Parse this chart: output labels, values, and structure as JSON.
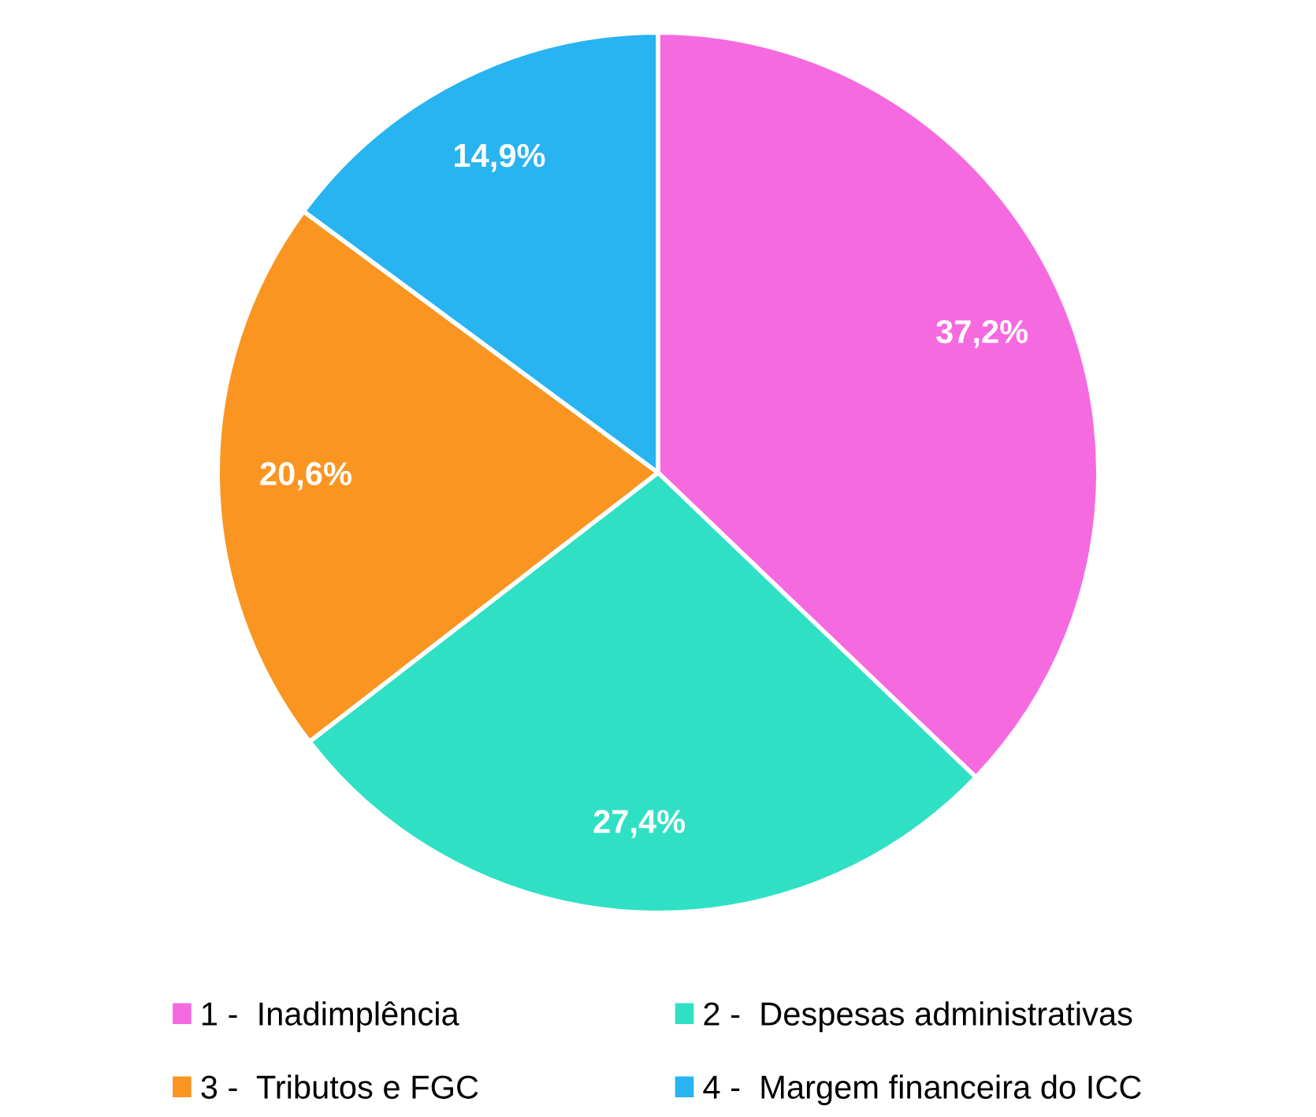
{
  "chart_data": {
    "type": "pie",
    "categories": [
      "1 -  Inadimplência",
      "2 -  Despesas administrativas",
      "3 -  Tributos e FGC",
      "4 -  Margem financeira do ICC"
    ],
    "values": [
      37.2,
      27.4,
      20.6,
      14.9
    ],
    "value_labels": [
      "37,2%",
      "27,4%",
      "20,6%",
      "14,9%"
    ],
    "colors": [
      "#f66ae0",
      "#30e0c4",
      "#fa9521",
      "#28b3f1"
    ],
    "legend": "bottom"
  }
}
